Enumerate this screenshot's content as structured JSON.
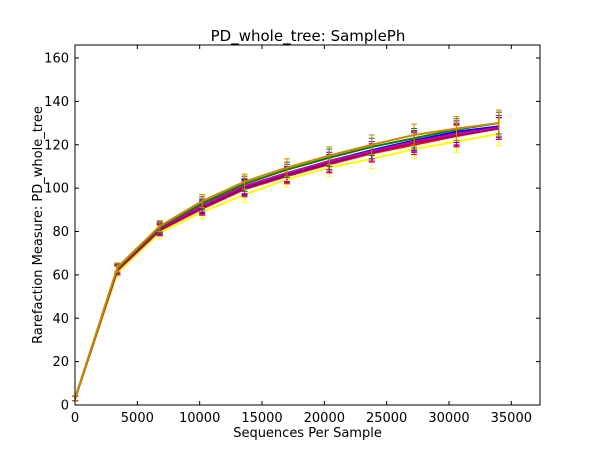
{
  "chart_data": {
    "type": "line",
    "title": "PD_whole_tree: SamplePh",
    "xlabel": "Sequences Per Sample",
    "ylabel": "Rarefaction Measure: PD_whole_tree",
    "xlim": [
      0,
      37300
    ],
    "ylim": [
      0,
      166
    ],
    "xticks": [
      0,
      5000,
      10000,
      15000,
      20000,
      25000,
      30000,
      35000
    ],
    "yticks": [
      0,
      20,
      40,
      60,
      80,
      100,
      120,
      140,
      160
    ],
    "grid": false,
    "legend": "none",
    "x": [
      10,
      3400,
      6800,
      10200,
      13600,
      17000,
      20400,
      23800,
      27200,
      30600,
      34000
    ],
    "series": [
      {
        "color": "#ffff00",
        "values": [
          3,
          61,
          79.5,
          89,
          97,
          104,
          109.5,
          113.5,
          118,
          121.5,
          125
        ],
        "errors": [
          1,
          2,
          3,
          3,
          3.5,
          3.5,
          4,
          4.5,
          4.5,
          5,
          5.5
        ]
      },
      {
        "color": "#ff0000",
        "values": [
          3,
          62,
          80.5,
          90.5,
          99.5,
          105.5,
          111,
          116,
          120,
          124,
          127.5
        ],
        "errors": [
          1,
          2,
          2.5,
          3,
          3.5,
          3.5,
          4,
          4,
          4.5,
          5,
          5
        ]
      },
      {
        "color": "#0000ff",
        "values": [
          3,
          62.5,
          81,
          91.5,
          100.5,
          106.5,
          112.5,
          117.5,
          122,
          126,
          128.5
        ],
        "errors": [
          1,
          2,
          2.5,
          3,
          3.5,
          3.5,
          4,
          4,
          4.5,
          5,
          5
        ]
      },
      {
        "color": "#800080",
        "values": [
          3,
          62.5,
          81,
          91,
          100,
          106,
          111.5,
          116.5,
          121,
          124.5,
          127.5
        ],
        "errors": [
          1,
          2,
          2.5,
          3,
          3.5,
          3.5,
          4,
          4,
          4.5,
          5,
          5
        ]
      },
      {
        "color": "#cc0099",
        "values": [
          3,
          62.5,
          81.5,
          92,
          101,
          107,
          112.5,
          117,
          121.5,
          125,
          128
        ],
        "errors": [
          1,
          2,
          2.5,
          3,
          3.5,
          4,
          4,
          4.5,
          4.5,
          5,
          5.5
        ]
      },
      {
        "color": "#008000",
        "values": [
          3,
          63,
          82,
          93,
          102,
          108.5,
          114,
          119,
          123,
          127,
          130
        ],
        "errors": [
          1,
          2,
          2.5,
          3,
          3.5,
          3.5,
          4,
          4,
          4.5,
          5,
          5
        ]
      },
      {
        "color": "#cc8800",
        "values": [
          3,
          63.5,
          82.5,
          94,
          103,
          109.5,
          115,
          120,
          124.5,
          127.5,
          130
        ],
        "errors": [
          1,
          2,
          2.5,
          3,
          3.5,
          4,
          4,
          4.5,
          5,
          5.5,
          6
        ]
      }
    ]
  }
}
